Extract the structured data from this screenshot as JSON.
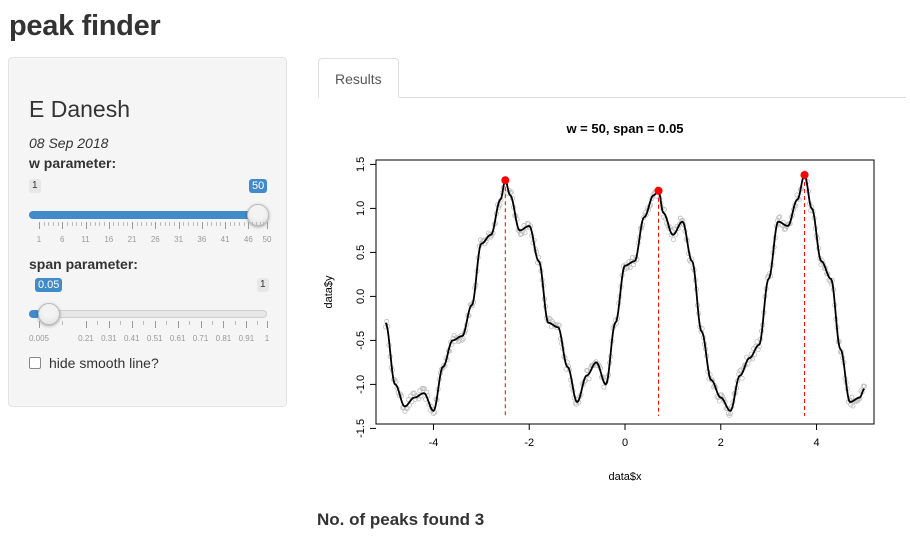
{
  "app": {
    "title": "peak finder"
  },
  "sidebar": {
    "author": "E Danesh",
    "date": "08 Sep 2018",
    "w_slider": {
      "label": "w parameter:",
      "min_label": "1",
      "value": "50",
      "ticks": [
        "1",
        "6",
        "11",
        "16",
        "21",
        "26",
        "31",
        "36",
        "41",
        "46",
        "50"
      ]
    },
    "span_slider": {
      "label": "span parameter:",
      "max_label": "1",
      "value": "0.05",
      "ticks": [
        "0.005",
        "0.21",
        "0.31",
        "0.41",
        "0.51",
        "0.61",
        "0.71",
        "0.81",
        "0.91",
        "1"
      ]
    },
    "checkbox": {
      "label": "hide smooth line?",
      "checked": false
    }
  },
  "tabs": [
    {
      "label": "Results",
      "active": true
    }
  ],
  "result": {
    "peaks_text": "No. of peaks found 3"
  },
  "colors": {
    "accent": "#428bca",
    "peak": "#ff0000",
    "points": "#bdbdbd"
  },
  "chart_data": {
    "type": "scatter",
    "title": "w = 50, span = 0.05",
    "xlabel": "data$x",
    "ylabel": "data$y",
    "xlim": [
      -5.2,
      5.2
    ],
    "ylim": [
      -1.45,
      1.55
    ],
    "xticks": [
      "-4",
      "-2",
      "0",
      "2",
      "4"
    ],
    "yticks": [
      "-1.5",
      "-1.0",
      "-0.5",
      "0.0",
      "0.5",
      "1.0",
      "1.5"
    ],
    "smooth_line": {
      "x": [
        -5.0,
        -4.8,
        -4.6,
        -4.4,
        -4.2,
        -4.0,
        -3.8,
        -3.6,
        -3.4,
        -3.2,
        -3.0,
        -2.8,
        -2.6,
        -2.5,
        -2.4,
        -2.2,
        -2.0,
        -1.8,
        -1.6,
        -1.4,
        -1.2,
        -1.0,
        -0.8,
        -0.6,
        -0.4,
        -0.2,
        0.0,
        0.2,
        0.4,
        0.6,
        0.7,
        0.8,
        1.0,
        1.2,
        1.4,
        1.6,
        1.8,
        2.0,
        2.2,
        2.4,
        2.6,
        2.8,
        3.0,
        3.2,
        3.4,
        3.6,
        3.75,
        3.9,
        4.1,
        4.3,
        4.5,
        4.7,
        4.9,
        5.0
      ],
      "y": [
        -0.3,
        -1.0,
        -1.25,
        -1.15,
        -1.1,
        -1.3,
        -0.8,
        -0.5,
        -0.45,
        -0.1,
        0.6,
        0.7,
        1.1,
        1.32,
        1.15,
        0.75,
        0.8,
        0.4,
        -0.3,
        -0.35,
        -0.8,
        -1.2,
        -0.9,
        -0.75,
        -1.0,
        -0.3,
        0.35,
        0.4,
        0.9,
        1.15,
        1.2,
        0.95,
        0.7,
        0.85,
        0.4,
        -0.4,
        -0.95,
        -1.15,
        -1.3,
        -0.9,
        -0.7,
        -0.55,
        0.2,
        0.85,
        0.8,
        1.1,
        1.38,
        1.0,
        0.4,
        0.2,
        -0.6,
        -1.2,
        -1.15,
        -1.05
      ]
    },
    "peaks": {
      "x": [
        -2.5,
        0.7,
        3.75
      ],
      "y": [
        1.32,
        1.2,
        1.38
      ]
    }
  }
}
